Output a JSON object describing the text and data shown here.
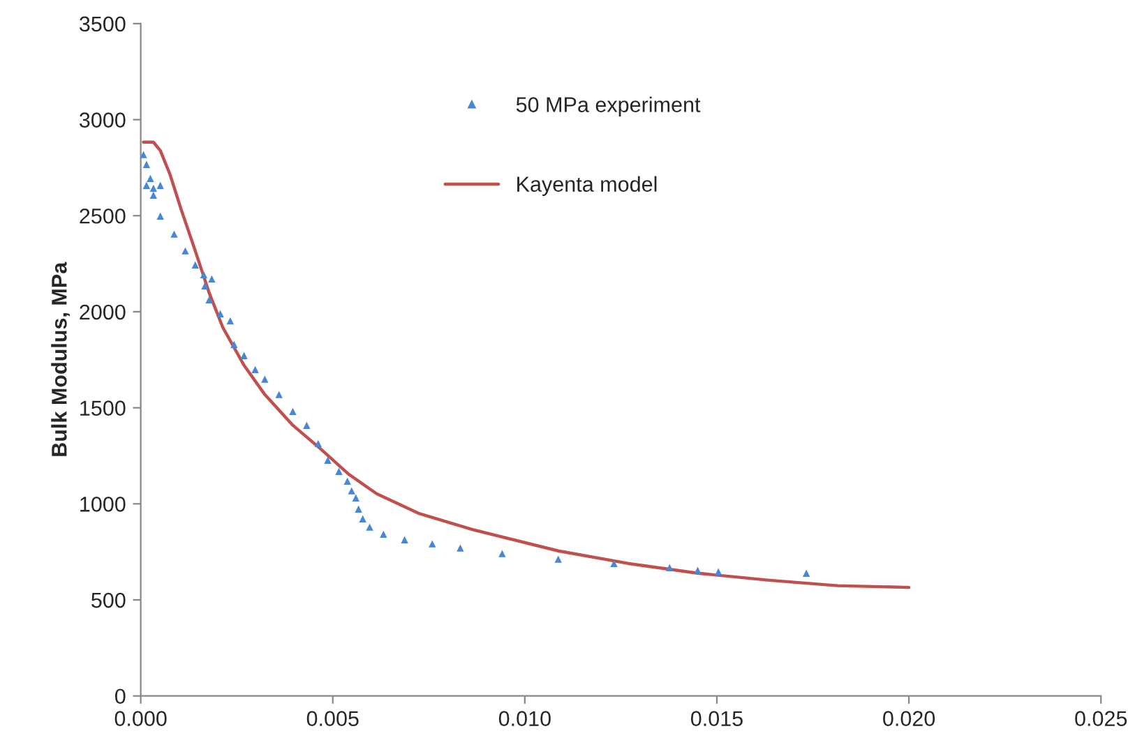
{
  "chart_data": {
    "type": "scatter",
    "ylabel": "Bulk Modulus, MPa",
    "xlim": [
      0,
      0.025
    ],
    "xticks": [
      {
        "value": 0,
        "label": "0.000"
      },
      {
        "value": 0.005,
        "label": "0.005"
      },
      {
        "value": 0.01,
        "label": "0.010"
      },
      {
        "value": 0.015,
        "label": "0.015"
      },
      {
        "value": 0.02,
        "label": "0.020"
      },
      {
        "value": 0.025,
        "label": "0.025"
      }
    ],
    "ylim": [
      0,
      3500
    ],
    "yticks": [
      0,
      500,
      1000,
      1500,
      2000,
      2500,
      3000,
      3500
    ],
    "grid": false,
    "legend": "top",
    "series": [
      {
        "name": "50 MPa experiment",
        "marker": "triangle",
        "color": "#4a86d4",
        "x": [
          7e-05,
          0.00015,
          0.00025,
          0.00033,
          0.00051,
          0.00015,
          0.00033,
          0.00051,
          0.00087,
          0.00116,
          0.00142,
          0.00164,
          0.00185,
          0.00167,
          0.00178,
          0.00207,
          0.00233,
          0.00243,
          0.00269,
          0.00298,
          0.00323,
          0.0036,
          0.00396,
          0.00432,
          0.00462,
          0.00487,
          0.00516,
          0.00538,
          0.00549,
          0.0056,
          0.00567,
          0.00578,
          0.00596,
          0.00632,
          0.00687,
          0.00759,
          0.00832,
          0.00941,
          0.01087,
          0.01232,
          0.01377,
          0.0145,
          0.01504,
          0.01733
        ],
        "values": [
          2818,
          2767,
          2694,
          2643,
          2658,
          2658,
          2607,
          2498,
          2404,
          2317,
          2244,
          2193,
          2171,
          2135,
          2062,
          1990,
          1953,
          1830,
          1772,
          1699,
          1649,
          1569,
          1481,
          1409,
          1314,
          1227,
          1169,
          1118,
          1068,
          1031,
          973,
          922,
          879,
          842,
          813,
          792,
          770,
          741,
          712,
          690,
          668,
          654,
          646,
          639
        ]
      },
      {
        "name": "Kayenta model",
        "type": "line",
        "marker": "none",
        "line_style": "solid",
        "color": "#c0504d",
        "x": [
          7e-05,
          0.00033,
          0.00051,
          0.00076,
          0.00105,
          0.00142,
          0.00178,
          0.00214,
          0.00269,
          0.00323,
          0.00396,
          0.00469,
          0.00541,
          0.00614,
          0.00723,
          0.00868,
          0.01087,
          0.01268,
          0.0145,
          0.01632,
          0.01814,
          0.02
        ],
        "values": [
          2883,
          2883,
          2839,
          2716,
          2534,
          2317,
          2099,
          1917,
          1721,
          1569,
          1409,
          1285,
          1155,
          1053,
          951,
          864,
          755,
          690,
          639,
          603,
          574,
          565
        ]
      }
    ]
  }
}
